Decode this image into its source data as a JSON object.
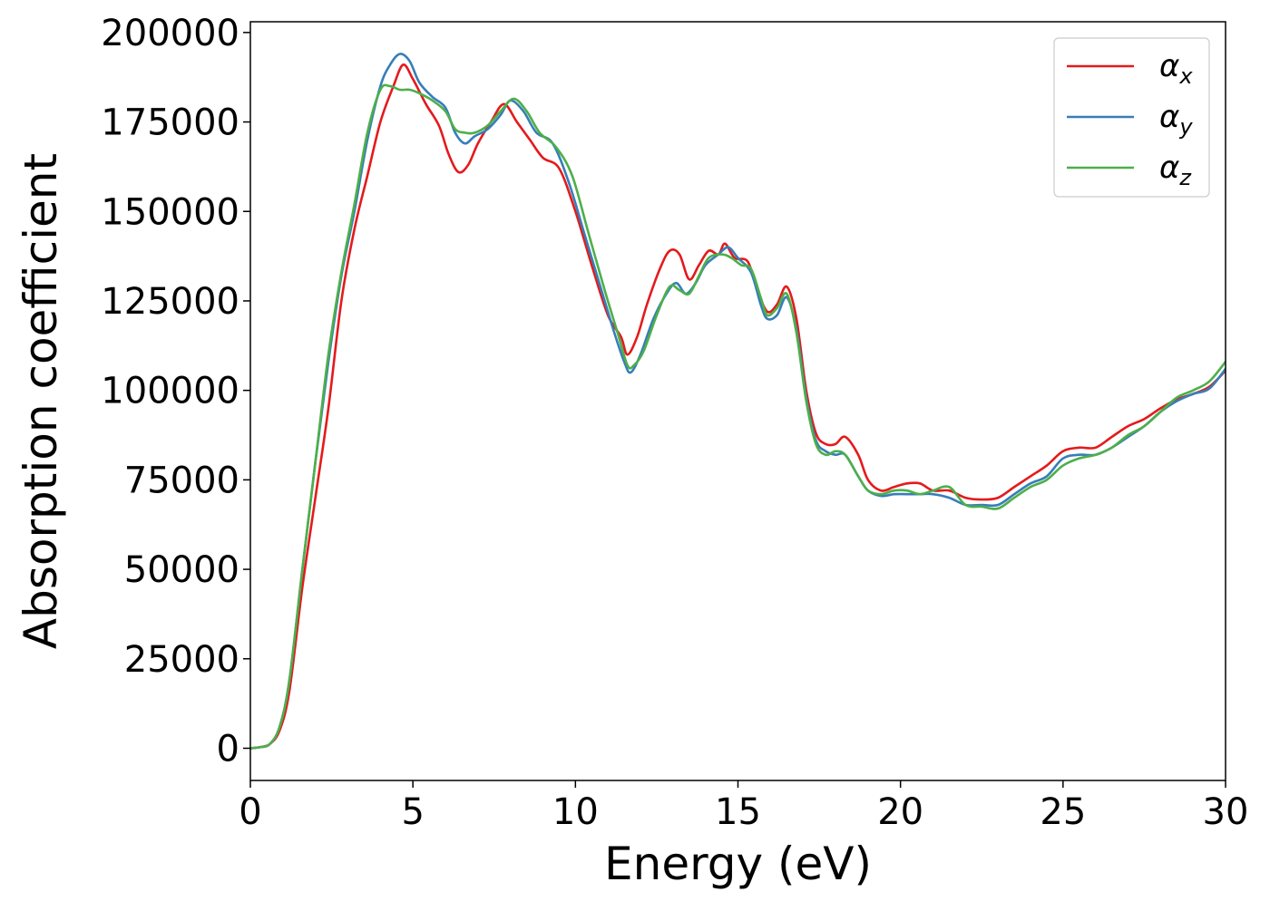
{
  "chart_data": {
    "type": "line",
    "title": "",
    "xlabel": "Energy (eV)",
    "ylabel": "Absorption coefficient",
    "xlim": [
      0,
      30
    ],
    "ylim": [
      -9000,
      203000
    ],
    "xticks": [
      0,
      5,
      10,
      15,
      20,
      25,
      30
    ],
    "xtick_labels": [
      "0",
      "5",
      "10",
      "15",
      "20",
      "25",
      "30"
    ],
    "yticks": [
      0,
      25000,
      50000,
      75000,
      100000,
      125000,
      150000,
      175000,
      200000
    ],
    "ytick_labels": [
      "0",
      "25000",
      "50000",
      "75000",
      "100000",
      "125000",
      "150000",
      "175000",
      "200000"
    ],
    "grid": false,
    "legend_position": "top-right",
    "series": [
      {
        "name": "αx",
        "symbol": "α",
        "subscript": "x",
        "color": "#e41a1c",
        "points": [
          [
            0,
            0
          ],
          [
            0.3,
            300
          ],
          [
            0.6,
            1200
          ],
          [
            0.9,
            5000
          ],
          [
            1.2,
            16000
          ],
          [
            1.6,
            45000
          ],
          [
            2.0,
            70000
          ],
          [
            2.4,
            95000
          ],
          [
            2.8,
            125000
          ],
          [
            3.2,
            145000
          ],
          [
            3.6,
            160000
          ],
          [
            4.0,
            175000
          ],
          [
            4.4,
            185000
          ],
          [
            4.7,
            191000
          ],
          [
            5.0,
            187000
          ],
          [
            5.4,
            180000
          ],
          [
            5.8,
            174000
          ],
          [
            6.1,
            166000
          ],
          [
            6.4,
            161000
          ],
          [
            6.7,
            163000
          ],
          [
            7.0,
            169000
          ],
          [
            7.4,
            175000
          ],
          [
            7.8,
            180000
          ],
          [
            8.2,
            175000
          ],
          [
            8.6,
            170000
          ],
          [
            9.0,
            165000
          ],
          [
            9.5,
            162000
          ],
          [
            10.0,
            150000
          ],
          [
            10.5,
            135000
          ],
          [
            11.0,
            121000
          ],
          [
            11.4,
            115000
          ],
          [
            11.6,
            110000
          ],
          [
            11.9,
            115000
          ],
          [
            12.2,
            124000
          ],
          [
            12.6,
            134000
          ],
          [
            12.9,
            139000
          ],
          [
            13.2,
            138000
          ],
          [
            13.5,
            131000
          ],
          [
            13.8,
            135000
          ],
          [
            14.1,
            139000
          ],
          [
            14.4,
            138000
          ],
          [
            14.6,
            141000
          ],
          [
            14.9,
            137000
          ],
          [
            15.3,
            136000
          ],
          [
            15.6,
            128000
          ],
          [
            15.9,
            122000
          ],
          [
            16.2,
            124000
          ],
          [
            16.5,
            129000
          ],
          [
            16.8,
            120000
          ],
          [
            17.1,
            100000
          ],
          [
            17.4,
            88000
          ],
          [
            17.7,
            85000
          ],
          [
            18.0,
            85000
          ],
          [
            18.3,
            87000
          ],
          [
            18.7,
            82000
          ],
          [
            19.0,
            75000
          ],
          [
            19.4,
            72000
          ],
          [
            19.8,
            73000
          ],
          [
            20.2,
            74000
          ],
          [
            20.6,
            74000
          ],
          [
            21.0,
            72000
          ],
          [
            21.5,
            72000
          ],
          [
            22.0,
            70000
          ],
          [
            22.5,
            69500
          ],
          [
            23.0,
            70000
          ],
          [
            23.5,
            73000
          ],
          [
            24.0,
            76000
          ],
          [
            24.5,
            79000
          ],
          [
            25.0,
            83000
          ],
          [
            25.5,
            84000
          ],
          [
            26.0,
            84000
          ],
          [
            26.5,
            87000
          ],
          [
            27.0,
            90000
          ],
          [
            27.5,
            92000
          ],
          [
            28.0,
            95000
          ],
          [
            28.5,
            97500
          ],
          [
            29.0,
            99000
          ],
          [
            29.5,
            101000
          ],
          [
            30.0,
            105500
          ]
        ]
      },
      {
        "name": "αy",
        "symbol": "α",
        "subscript": "y",
        "color": "#377eb8",
        "points": [
          [
            0,
            0
          ],
          [
            0.3,
            300
          ],
          [
            0.6,
            1200
          ],
          [
            0.9,
            6000
          ],
          [
            1.2,
            19000
          ],
          [
            1.6,
            50000
          ],
          [
            2.0,
            80000
          ],
          [
            2.4,
            108000
          ],
          [
            2.8,
            132000
          ],
          [
            3.2,
            150000
          ],
          [
            3.6,
            170000
          ],
          [
            4.0,
            185000
          ],
          [
            4.3,
            191000
          ],
          [
            4.6,
            194000
          ],
          [
            4.9,
            192000
          ],
          [
            5.2,
            186000
          ],
          [
            5.6,
            182000
          ],
          [
            6.0,
            179000
          ],
          [
            6.3,
            172000
          ],
          [
            6.6,
            169000
          ],
          [
            6.9,
            171000
          ],
          [
            7.3,
            173000
          ],
          [
            7.7,
            177000
          ],
          [
            8.0,
            181000
          ],
          [
            8.4,
            178000
          ],
          [
            8.8,
            172000
          ],
          [
            9.3,
            169000
          ],
          [
            9.8,
            158000
          ],
          [
            10.3,
            143000
          ],
          [
            10.8,
            128000
          ],
          [
            11.2,
            116000
          ],
          [
            11.5,
            108000
          ],
          [
            11.7,
            105000
          ],
          [
            12.0,
            110000
          ],
          [
            12.4,
            120000
          ],
          [
            12.8,
            127000
          ],
          [
            13.1,
            130000
          ],
          [
            13.4,
            127000
          ],
          [
            13.7,
            130000
          ],
          [
            14.0,
            135000
          ],
          [
            14.4,
            138000
          ],
          [
            14.7,
            140000
          ],
          [
            15.0,
            137000
          ],
          [
            15.4,
            133000
          ],
          [
            15.7,
            124000
          ],
          [
            15.9,
            120000
          ],
          [
            16.2,
            121000
          ],
          [
            16.5,
            126000
          ],
          [
            16.8,
            117000
          ],
          [
            17.1,
            98000
          ],
          [
            17.4,
            86000
          ],
          [
            17.7,
            83000
          ],
          [
            18.0,
            82000
          ],
          [
            18.3,
            82000
          ],
          [
            18.7,
            76000
          ],
          [
            19.0,
            72000
          ],
          [
            19.4,
            70500
          ],
          [
            19.8,
            71000
          ],
          [
            20.2,
            71000
          ],
          [
            20.6,
            71000
          ],
          [
            21.0,
            71000
          ],
          [
            21.5,
            70000
          ],
          [
            22.0,
            68000
          ],
          [
            22.5,
            68000
          ],
          [
            23.0,
            68000
          ],
          [
            23.5,
            71000
          ],
          [
            24.0,
            74000
          ],
          [
            24.5,
            76000
          ],
          [
            25.0,
            81000
          ],
          [
            25.5,
            82000
          ],
          [
            26.0,
            82000
          ],
          [
            26.5,
            84000
          ],
          [
            27.0,
            87000
          ],
          [
            27.5,
            90000
          ],
          [
            28.0,
            94000
          ],
          [
            28.5,
            97000
          ],
          [
            29.0,
            99000
          ],
          [
            29.5,
            100500
          ],
          [
            30.0,
            106000
          ]
        ]
      },
      {
        "name": "αz",
        "symbol": "α",
        "subscript": "z",
        "color": "#4daf4a",
        "points": [
          [
            0,
            0
          ],
          [
            0.3,
            300
          ],
          [
            0.6,
            1200
          ],
          [
            0.9,
            6000
          ],
          [
            1.2,
            19000
          ],
          [
            1.6,
            50000
          ],
          [
            2.0,
            80000
          ],
          [
            2.4,
            110000
          ],
          [
            2.8,
            133000
          ],
          [
            3.2,
            152000
          ],
          [
            3.6,
            172000
          ],
          [
            4.0,
            184000
          ],
          [
            4.3,
            185000
          ],
          [
            4.6,
            184000
          ],
          [
            4.9,
            184000
          ],
          [
            5.2,
            183000
          ],
          [
            5.6,
            181000
          ],
          [
            6.0,
            178000
          ],
          [
            6.3,
            173000
          ],
          [
            6.6,
            172000
          ],
          [
            6.9,
            172000
          ],
          [
            7.3,
            174000
          ],
          [
            7.7,
            178000
          ],
          [
            8.1,
            181500
          ],
          [
            8.5,
            178000
          ],
          [
            8.9,
            172000
          ],
          [
            9.4,
            168000
          ],
          [
            9.9,
            160000
          ],
          [
            10.4,
            144000
          ],
          [
            10.9,
            128000
          ],
          [
            11.3,
            116000
          ],
          [
            11.6,
            107000
          ],
          [
            11.8,
            107000
          ],
          [
            12.1,
            111000
          ],
          [
            12.5,
            121000
          ],
          [
            12.9,
            129000
          ],
          [
            13.2,
            128000
          ],
          [
            13.5,
            127000
          ],
          [
            13.8,
            132000
          ],
          [
            14.1,
            137000
          ],
          [
            14.5,
            138000
          ],
          [
            14.8,
            137000
          ],
          [
            15.1,
            135000
          ],
          [
            15.4,
            134000
          ],
          [
            15.7,
            126000
          ],
          [
            15.9,
            121000
          ],
          [
            16.2,
            123000
          ],
          [
            16.5,
            127000
          ],
          [
            16.8,
            116000
          ],
          [
            17.1,
            97000
          ],
          [
            17.4,
            85000
          ],
          [
            17.7,
            82000
          ],
          [
            18.0,
            83000
          ],
          [
            18.3,
            82000
          ],
          [
            18.7,
            76000
          ],
          [
            19.0,
            72000
          ],
          [
            19.4,
            71000
          ],
          [
            19.8,
            72000
          ],
          [
            20.2,
            72000
          ],
          [
            20.6,
            71000
          ],
          [
            21.0,
            72000
          ],
          [
            21.5,
            73000
          ],
          [
            22.0,
            68000
          ],
          [
            22.5,
            67500
          ],
          [
            23.0,
            67000
          ],
          [
            23.5,
            70000
          ],
          [
            24.0,
            73000
          ],
          [
            24.5,
            75000
          ],
          [
            25.0,
            79000
          ],
          [
            25.5,
            81000
          ],
          [
            26.0,
            82000
          ],
          [
            26.5,
            84000
          ],
          [
            27.0,
            87500
          ],
          [
            27.5,
            90000
          ],
          [
            28.0,
            94000
          ],
          [
            28.5,
            98000
          ],
          [
            29.0,
            100000
          ],
          [
            29.5,
            102500
          ],
          [
            30.0,
            108000
          ]
        ]
      }
    ]
  }
}
